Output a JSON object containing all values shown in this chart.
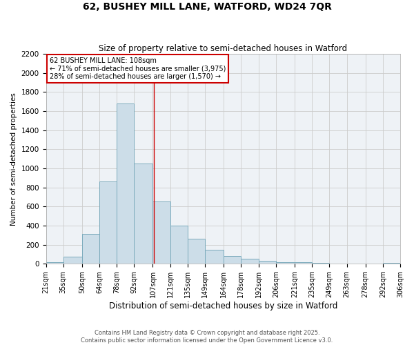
{
  "title1": "62, BUSHEY MILL LANE, WATFORD, WD24 7QR",
  "title2": "Size of property relative to semi-detached houses in Watford",
  "xlabel": "Distribution of semi-detached houses by size in Watford",
  "ylabel": "Number of semi-detached properties",
  "footer1": "Contains HM Land Registry data © Crown copyright and database right 2025.",
  "footer2": "Contains public sector information licensed under the Open Government Licence v3.0.",
  "property_label": "62 BUSHEY MILL LANE: 108sqm",
  "smaller_label": "← 71% of semi-detached houses are smaller (3,975)",
  "larger_label": "28% of semi-detached houses are larger (1,570) →",
  "property_size": 108,
  "bar_color": "#ccdde8",
  "bar_edge_color": "#7aaabb",
  "vline_color": "#cc0000",
  "annotation_box_edgecolor": "#cc0000",
  "grid_color": "#cccccc",
  "bg_color": "#eef2f6",
  "bins": [
    21,
    35,
    50,
    64,
    78,
    92,
    107,
    121,
    135,
    149,
    164,
    178,
    192,
    206,
    221,
    235,
    249,
    263,
    278,
    292,
    306
  ],
  "heights": [
    20,
    75,
    310,
    860,
    1680,
    1050,
    650,
    400,
    260,
    150,
    80,
    55,
    35,
    20,
    15,
    8,
    5,
    3,
    2,
    10
  ],
  "ylim": [
    0,
    2200
  ],
  "yticks": [
    0,
    200,
    400,
    600,
    800,
    1000,
    1200,
    1400,
    1600,
    1800,
    2000,
    2200
  ]
}
